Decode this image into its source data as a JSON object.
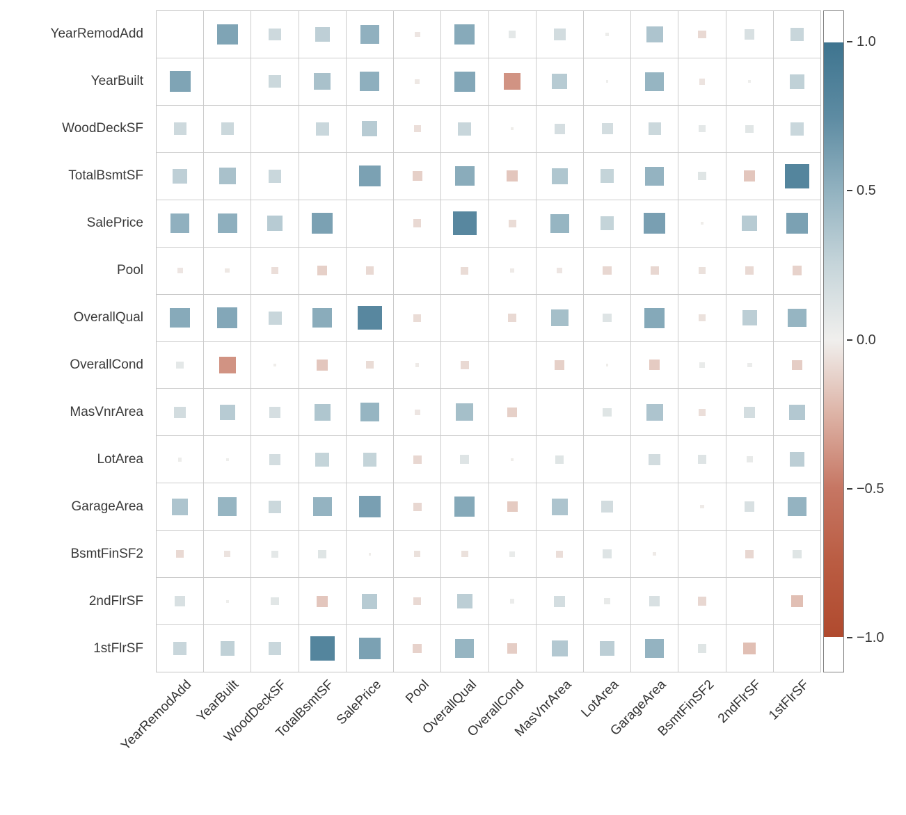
{
  "chart_data": {
    "type": "heatmap",
    "subtype": "correlation-matrix-squares",
    "title": "",
    "xlabel": "",
    "ylabel": "",
    "grid": true,
    "legend_position": "right-colorbar",
    "variables": [
      "YearRemodAdd",
      "YearBuilt",
      "WoodDeckSF",
      "TotalBsmtSF",
      "SalePrice",
      "Pool",
      "OverallQual",
      "OverallCond",
      "MasVnrArea",
      "LotArea",
      "GarageArea",
      "BsmtFinSF2",
      "2ndFlrSF",
      "1stFlrSF"
    ],
    "matrix": [
      [
        null,
        0.59,
        0.21,
        0.29,
        0.51,
        -0.04,
        0.55,
        0.07,
        0.18,
        0.02,
        0.37,
        -0.09,
        0.14,
        0.24
      ],
      [
        0.59,
        null,
        0.22,
        0.39,
        0.52,
        -0.03,
        0.57,
        -0.38,
        0.32,
        0.01,
        0.48,
        -0.05,
        0.01,
        0.28
      ],
      [
        0.21,
        0.22,
        null,
        0.23,
        0.32,
        -0.07,
        0.24,
        -0.01,
        0.16,
        0.17,
        0.22,
        0.07,
        0.09,
        0.23
      ],
      [
        0.29,
        0.39,
        0.23,
        null,
        0.61,
        -0.13,
        0.54,
        -0.17,
        0.36,
        0.26,
        0.49,
        0.1,
        -0.17,
        0.82
      ],
      [
        0.51,
        0.52,
        0.32,
        0.61,
        null,
        -0.09,
        0.79,
        -0.08,
        0.48,
        0.26,
        0.62,
        -0.01,
        0.32,
        0.61
      ],
      [
        -0.04,
        -0.03,
        -0.07,
        -0.13,
        -0.09,
        null,
        -0.08,
        -0.02,
        -0.04,
        -0.1,
        -0.1,
        -0.06,
        -0.09,
        -0.12
      ],
      [
        0.55,
        0.57,
        0.24,
        0.54,
        0.79,
        -0.08,
        null,
        -0.09,
        0.41,
        0.11,
        0.56,
        -0.06,
        0.3,
        0.48
      ],
      [
        0.07,
        -0.38,
        -0.01,
        -0.17,
        -0.08,
        -0.02,
        -0.09,
        null,
        -0.13,
        -0.01,
        -0.15,
        0.04,
        0.03,
        -0.14
      ],
      [
        0.18,
        0.32,
        0.16,
        0.36,
        0.48,
        -0.04,
        0.41,
        -0.13,
        null,
        0.1,
        0.37,
        -0.07,
        0.17,
        0.34
      ],
      [
        0.02,
        0.01,
        0.17,
        0.26,
        0.26,
        -0.1,
        0.11,
        -0.01,
        0.1,
        null,
        0.18,
        0.11,
        0.05,
        0.3
      ],
      [
        0.37,
        0.48,
        0.22,
        0.49,
        0.62,
        -0.1,
        0.56,
        -0.15,
        0.37,
        0.18,
        null,
        -0.02,
        0.14,
        0.49
      ],
      [
        -0.09,
        -0.05,
        0.07,
        0.1,
        -0.01,
        -0.06,
        -0.06,
        0.04,
        -0.07,
        0.11,
        -0.02,
        null,
        -0.1,
        0.1
      ],
      [
        0.14,
        0.01,
        0.09,
        -0.17,
        0.32,
        -0.09,
        0.3,
        0.03,
        0.17,
        0.05,
        0.14,
        -0.1,
        null,
        -0.2
      ],
      [
        0.24,
        0.28,
        0.23,
        0.82,
        0.61,
        -0.12,
        0.48,
        -0.14,
        0.34,
        0.3,
        0.49,
        0.1,
        -0.2,
        null
      ]
    ],
    "encoding": {
      "square_area": "proportional to |r|",
      "square_color": "diverging colormap by r",
      "max_square_side_fraction": 0.58
    },
    "colorbar": {
      "min": -1.0,
      "max": 1.0,
      "ticks": [
        {
          "label": "1.0",
          "value": 1.0
        },
        {
          "label": "0.5",
          "value": 0.5
        },
        {
          "label": "0.0",
          "value": 0.0
        },
        {
          "label": "−0.5",
          "value": -0.5
        },
        {
          "label": "−1.0",
          "value": -1.0
        }
      ],
      "colormap_stops": [
        {
          "value": -1.0,
          "color": "#b04a2e"
        },
        {
          "value": -0.75,
          "color": "#ba5c42"
        },
        {
          "value": -0.5,
          "color": "#c67663"
        },
        {
          "value": -0.25,
          "color": "#ddb3a6"
        },
        {
          "value": 0.0,
          "color": "#f0efed"
        },
        {
          "value": 0.25,
          "color": "#c6d5da"
        },
        {
          "value": 0.5,
          "color": "#92b2c0"
        },
        {
          "value": 0.75,
          "color": "#5d8ba2"
        },
        {
          "value": 1.0,
          "color": "#3e748f"
        }
      ],
      "cap_color": "#ffffff"
    }
  },
  "colors": {
    "background": "#ffffff",
    "gridline": "#cbcbcb",
    "label_text": "#3a3a3a",
    "colorbar_border": "#808080"
  }
}
